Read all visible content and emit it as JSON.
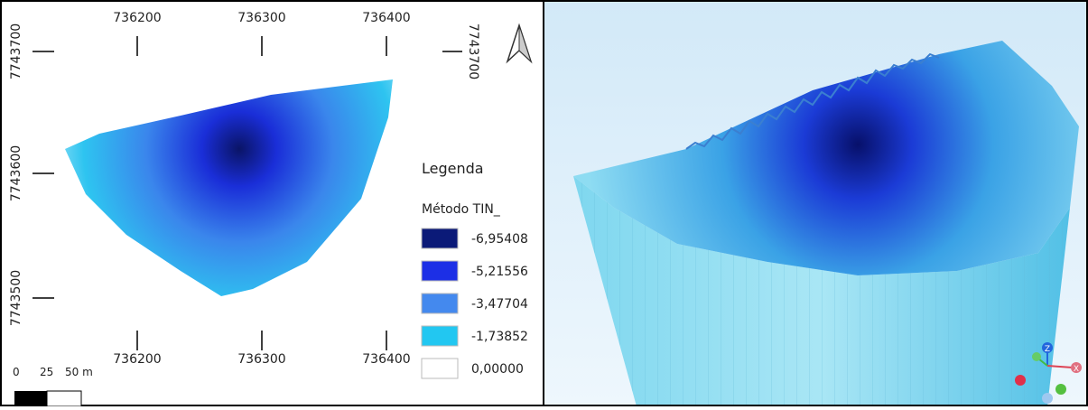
{
  "map": {
    "x_labels_top": [
      "736200",
      "736300",
      "736400"
    ],
    "x_labels_bottom": [
      "736200",
      "736300",
      "736400"
    ],
    "y_labels_left": [
      "7743700",
      "7743600",
      "7743500"
    ],
    "y_label_right": "7743700",
    "legend": {
      "title": "Legenda",
      "subtitle": "Método TIN_",
      "entries": [
        {
          "label": "-6,95408",
          "color": "#0b1a78"
        },
        {
          "label": "-5,21556",
          "color": "#1c2fe6"
        },
        {
          "label": "-3,47704",
          "color": "#4489ee"
        },
        {
          "label": "-1,73852",
          "color": "#22c7f1"
        },
        {
          "label": "0,00000",
          "color": "#ffffff"
        }
      ]
    },
    "scale_labels": [
      "0",
      "25",
      "50 m"
    ]
  },
  "view3d": {
    "axis_labels": [
      "Z",
      "X"
    ]
  }
}
